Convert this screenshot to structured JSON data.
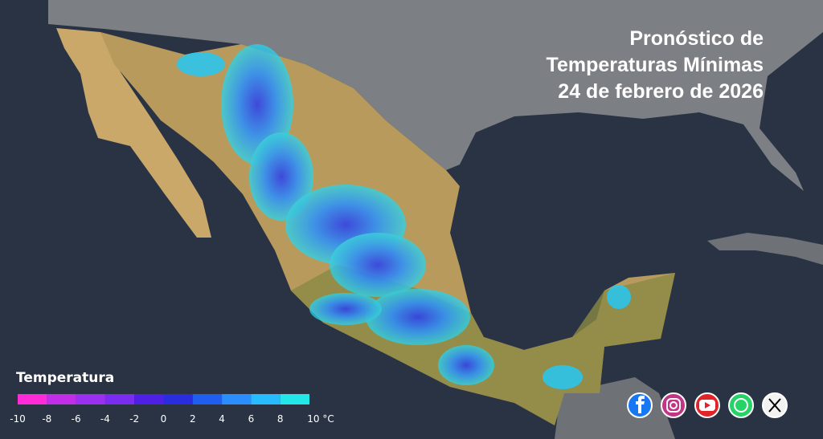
{
  "header": {
    "title_lines": [
      "Pronóstico de",
      "Temperaturas Mínimas",
      "24 de febrero de 2026"
    ]
  },
  "legend": {
    "title": "Temperatura",
    "ticks": [
      -10,
      -8,
      -6,
      -4,
      -2,
      0,
      2,
      4,
      6,
      8,
      {
        "value": 10,
        "label": "10 °C"
      }
    ],
    "colors": [
      "#ff2bd8",
      "#c22ee8",
      "#9b30f0",
      "#7a2cf0",
      "#4e20e6",
      "#2a2ce0",
      "#1f5ef0",
      "#2a8eff",
      "#26bcff",
      "#22e6e8"
    ]
  }
}
